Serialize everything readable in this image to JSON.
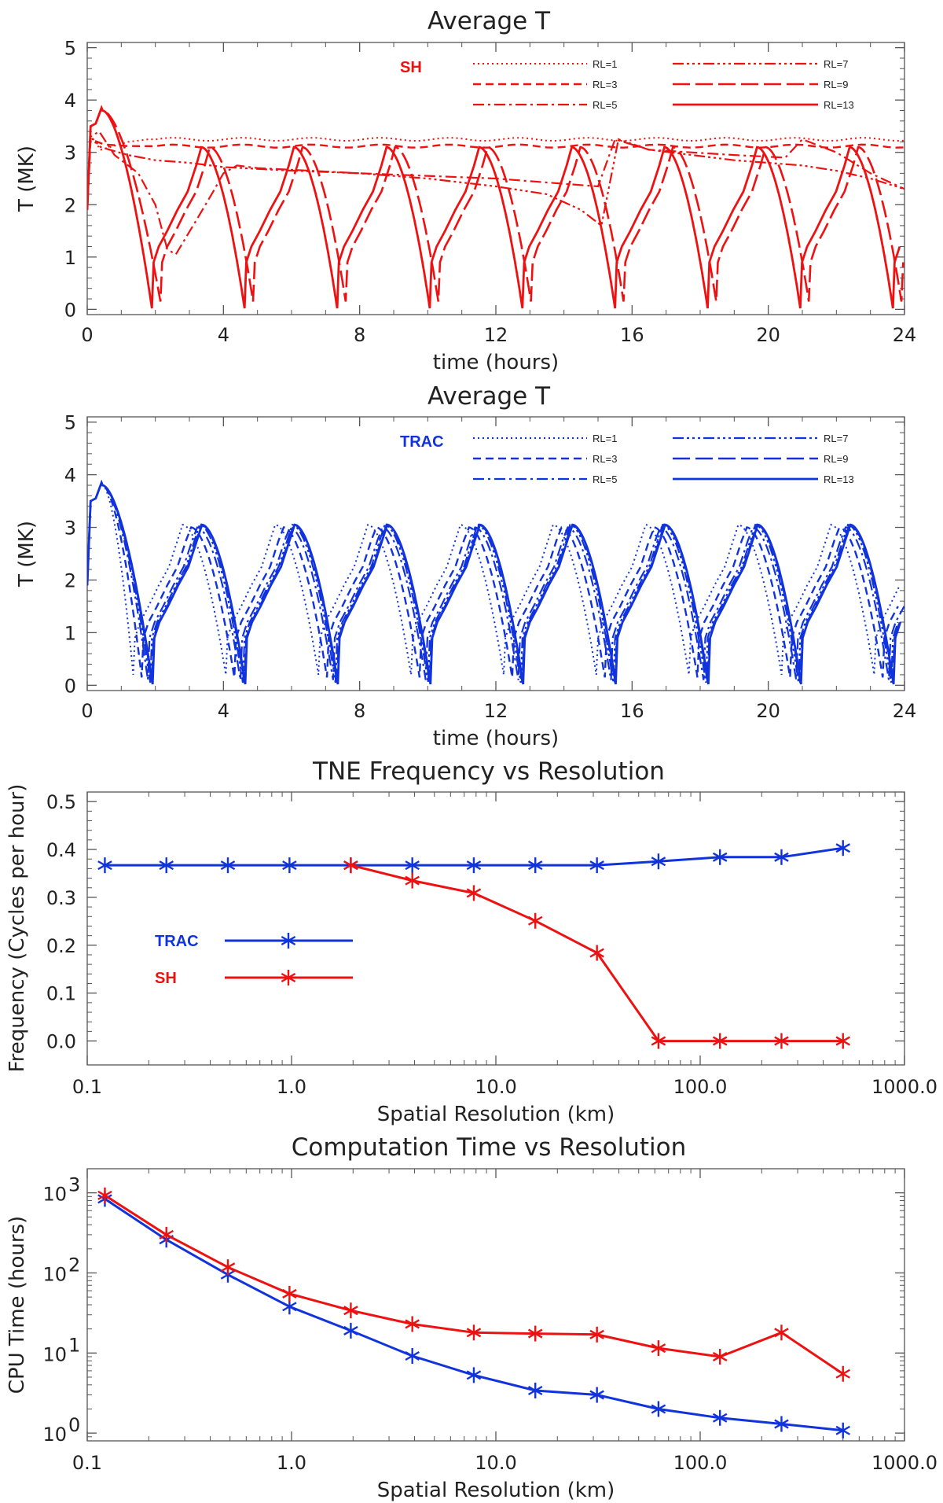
{
  "colors": {
    "sh": "#ee1111",
    "trac": "#1133dd",
    "axis": "#555555"
  },
  "chart_data": [
    {
      "type": "line",
      "title": "Average T",
      "xlabel": "time (hours)",
      "ylabel": "T (MK)",
      "xlim": [
        0,
        24
      ],
      "ylim": [
        -0.1,
        5.1
      ],
      "xticks": [
        0,
        4,
        8,
        12,
        16,
        20,
        24
      ],
      "yticks": [
        0,
        1,
        2,
        3,
        4,
        5
      ],
      "grid": false,
      "legend_position": "top-right",
      "model_label": "SH",
      "color": "#ee1111",
      "series": [
        {
          "name": "RL=1",
          "style": "dotted",
          "start": [
            [
              0,
              1.9
            ],
            [
              0.1,
              3.3
            ],
            [
              0.4,
              3.05
            ],
            [
              1.2,
              3.2
            ],
            [
              1.8,
              3.25
            ]
          ],
          "plateau": 3.25
        },
        {
          "name": "RL=3",
          "style": "dashed",
          "start": [
            [
              0,
              1.9
            ],
            [
              0.1,
              3.25
            ],
            [
              0.5,
              3.15
            ],
            [
              1.2,
              3.12
            ]
          ],
          "plateau": 3.12
        },
        {
          "name": "RL=5",
          "style": "dashdot",
          "points": [
            [
              0,
              1.9
            ],
            [
              0.1,
              3.3
            ],
            [
              0.35,
              3.4
            ],
            [
              0.8,
              2.95
            ],
            [
              1.5,
              2.6
            ],
            [
              2.0,
              2.0
            ],
            [
              2.35,
              1.15
            ],
            [
              2.6,
              1.05
            ],
            [
              3.2,
              1.7
            ],
            [
              3.7,
              2.25
            ],
            [
              4.0,
              2.6
            ],
            [
              4.4,
              2.75
            ],
            [
              5,
              2.7
            ],
            [
              8,
              2.6
            ],
            [
              12,
              2.5
            ],
            [
              15,
              2.35
            ],
            [
              15.5,
              3.25
            ],
            [
              16.5,
              3.05
            ],
            [
              19,
              2.95
            ],
            [
              20.5,
              2.9
            ],
            [
              21.0,
              3.25
            ],
            [
              22,
              3.0
            ],
            [
              23,
              2.6
            ],
            [
              24,
              2.3
            ]
          ]
        },
        {
          "name": "RL=7",
          "style": "dashdotdotdot",
          "points": [
            [
              0,
              1.9
            ],
            [
              0.1,
              3.3
            ],
            [
              0.4,
              3.1
            ],
            [
              1.2,
              2.95
            ],
            [
              2,
              2.85
            ],
            [
              3,
              2.8
            ],
            [
              4,
              2.72
            ],
            [
              6,
              2.65
            ],
            [
              8,
              2.6
            ],
            [
              10,
              2.5
            ],
            [
              12,
              2.35
            ],
            [
              13.5,
              2.2
            ],
            [
              14.5,
              1.9
            ],
            [
              15.1,
              1.6
            ],
            [
              15.6,
              3.25
            ],
            [
              16.5,
              3.05
            ],
            [
              19,
              2.85
            ],
            [
              21,
              2.75
            ],
            [
              22,
              2.65
            ],
            [
              23,
              2.5
            ],
            [
              24,
              2.3
            ]
          ]
        },
        {
          "name": "RL=9",
          "style": "longdash",
          "cycle": {
            "t0": 0.45,
            "period": 2.72,
            "phase": 0.25,
            "min": 0.15,
            "max": 3.1
          }
        },
        {
          "name": "RL=13",
          "style": "solid",
          "cycle": {
            "t0": 0.45,
            "period": 2.72,
            "phase": 0.0,
            "min": 0.02,
            "max": 3.1
          }
        }
      ]
    },
    {
      "type": "line",
      "title": "Average T",
      "xlabel": "time (hours)",
      "ylabel": "T (MK)",
      "xlim": [
        0,
        24
      ],
      "ylim": [
        -0.1,
        5.1
      ],
      "xticks": [
        0,
        4,
        8,
        12,
        16,
        20,
        24
      ],
      "yticks": [
        0,
        1,
        2,
        3,
        4,
        5
      ],
      "grid": false,
      "legend_position": "top-right",
      "model_label": "TRAC",
      "color": "#1133dd",
      "series": [
        {
          "name": "RL=1",
          "style": "dotted",
          "cycle": {
            "t0": 0.45,
            "period": 2.72,
            "phase": -0.55,
            "min": 0.2,
            "max": 3.05
          }
        },
        {
          "name": "RL=3",
          "style": "dashed",
          "cycle": {
            "t0": 0.45,
            "period": 2.72,
            "phase": -0.3,
            "min": 0.15,
            "max": 3.0
          }
        },
        {
          "name": "RL=5",
          "style": "dashdot",
          "cycle": {
            "t0": 0.45,
            "period": 2.72,
            "phase": -0.12,
            "min": 0.1,
            "max": 3.0
          }
        },
        {
          "name": "RL=7",
          "style": "dashdotdotdot",
          "cycle": {
            "t0": 0.45,
            "period": 2.72,
            "phase": -0.05,
            "min": 0.05,
            "max": 3.05
          }
        },
        {
          "name": "RL=9",
          "style": "longdash",
          "cycle": {
            "t0": 0.45,
            "period": 2.72,
            "phase": 0.0,
            "min": 0.05,
            "max": 3.05
          }
        },
        {
          "name": "RL=13",
          "style": "solid",
          "cycle": {
            "t0": 0.45,
            "period": 2.72,
            "phase": 0.02,
            "min": 0.02,
            "max": 3.05
          }
        }
      ]
    },
    {
      "type": "line",
      "title": "TNE Frequency vs Resolution",
      "xlabel": "Spatial Resolution (km)",
      "ylabel": "Frequency (Cycles per hour)",
      "xscale": "log",
      "xlim": [
        0.1,
        1000
      ],
      "ylim": [
        -0.05,
        0.52
      ],
      "xticks": [
        0.1,
        1,
        10,
        100,
        1000
      ],
      "xticklabels": [
        "0.1",
        "1.0",
        "10.0",
        "100.0",
        "1000.0"
      ],
      "yticks": [
        0,
        0.1,
        0.2,
        0.3,
        0.4,
        0.5
      ],
      "yticklabels": [
        "0.0",
        "0.1",
        "0.2",
        "0.3",
        "0.4",
        "0.5"
      ],
      "grid": false,
      "legend_position": "middle-left",
      "x": [
        0.122,
        0.244,
        0.488,
        0.977,
        1.95,
        3.9,
        7.8,
        15.6,
        31.25,
        62.5,
        125,
        250,
        500
      ],
      "series": [
        {
          "name": "TRAC",
          "color": "#1133dd",
          "values": [
            0.367,
            0.367,
            0.367,
            0.367,
            0.367,
            0.367,
            0.367,
            0.367,
            0.367,
            0.375,
            0.384,
            0.384,
            0.403
          ]
        },
        {
          "name": "SH",
          "color": "#ee1111",
          "values": [
            null,
            null,
            null,
            null,
            0.367,
            0.335,
            0.309,
            0.251,
            0.184,
            0.0,
            0.0,
            0.0,
            0.0
          ]
        }
      ]
    },
    {
      "type": "line",
      "title": "Computation Time vs Resolution",
      "xlabel": "Spatial Resolution (km)",
      "ylabel": "CPU Time (hours)",
      "xscale": "log",
      "yscale": "log",
      "xlim": [
        0.1,
        1000
      ],
      "ylim": [
        0.8,
        2000
      ],
      "xticks": [
        0.1,
        1,
        10,
        100,
        1000
      ],
      "xticklabels": [
        "0.1",
        "1.0",
        "10.0",
        "100.0",
        "1000.0"
      ],
      "yticks": [
        1,
        10,
        100,
        1000
      ],
      "yticklabels": [
        "10",
        "10",
        "10",
        "10"
      ],
      "ytick_exponents": [
        "0",
        "1",
        "2",
        "3"
      ],
      "grid": false,
      "x": [
        0.122,
        0.244,
        0.488,
        0.977,
        1.95,
        3.9,
        7.8,
        15.6,
        31.25,
        62.5,
        125,
        250,
        500
      ],
      "series": [
        {
          "color": "#1133dd",
          "values": [
            840,
            260,
            95,
            38,
            19,
            9.2,
            5.3,
            3.4,
            3.0,
            2.0,
            1.55,
            1.3,
            1.08
          ]
        },
        {
          "color": "#ee1111",
          "values": [
            930,
            300,
            118,
            55,
            34,
            23,
            18,
            17.5,
            17,
            11.5,
            9.0,
            18,
            5.5
          ]
        }
      ]
    }
  ]
}
